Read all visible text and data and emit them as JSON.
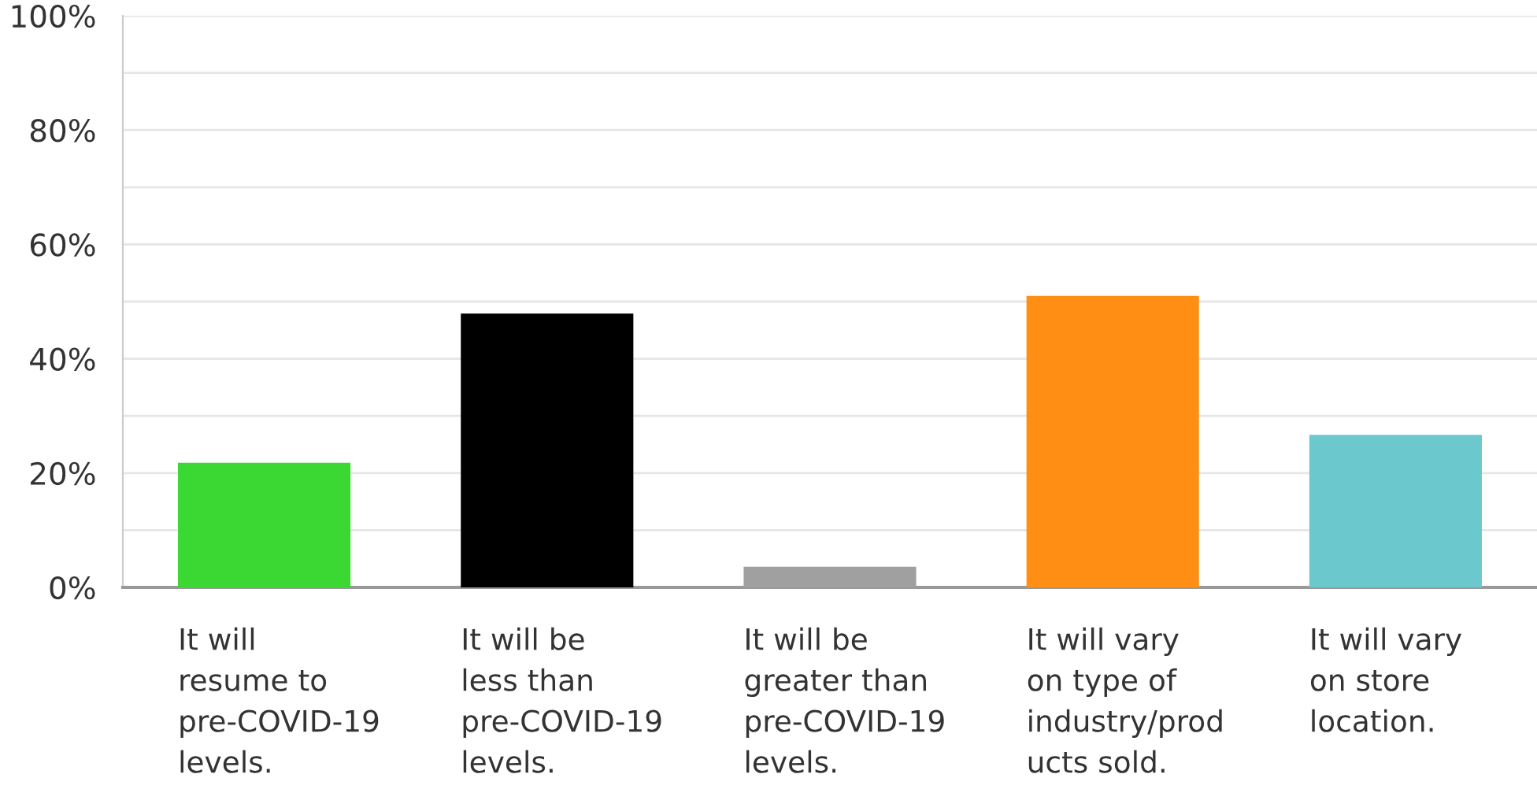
{
  "chart_data": {
    "type": "bar",
    "categories": [
      "It will\nresume to\npre-COVID-19\nlevels.",
      "It will be\nless than\npre-COVID-19\nlevels.",
      "It will be\ngreater than\npre-COVID-19\nlevels.",
      "It will vary\non type of\nindustry/prod\nucts sold.",
      "It will vary\non store\nlocation."
    ],
    "values": [
      21.8,
      47.9,
      3.6,
      51,
      26.7
    ],
    "colors": [
      "#3bd732",
      "#000000",
      "#a0a0a0",
      "#fe8f14",
      "#6bc8cd"
    ],
    "ylim": [
      0,
      100
    ],
    "yticks": [
      {
        "value": 0,
        "label": "0%"
      },
      {
        "value": 10,
        "label": null
      },
      {
        "value": 20,
        "label": "20%"
      },
      {
        "value": 30,
        "label": null
      },
      {
        "value": 40,
        "label": "40%"
      },
      {
        "value": 50,
        "label": null
      },
      {
        "value": 60,
        "label": "60%"
      },
      {
        "value": 70,
        "label": null
      },
      {
        "value": 80,
        "label": "80%"
      },
      {
        "value": 90,
        "label": null
      },
      {
        "value": 100,
        "label": "100%"
      }
    ],
    "grid": "y"
  }
}
